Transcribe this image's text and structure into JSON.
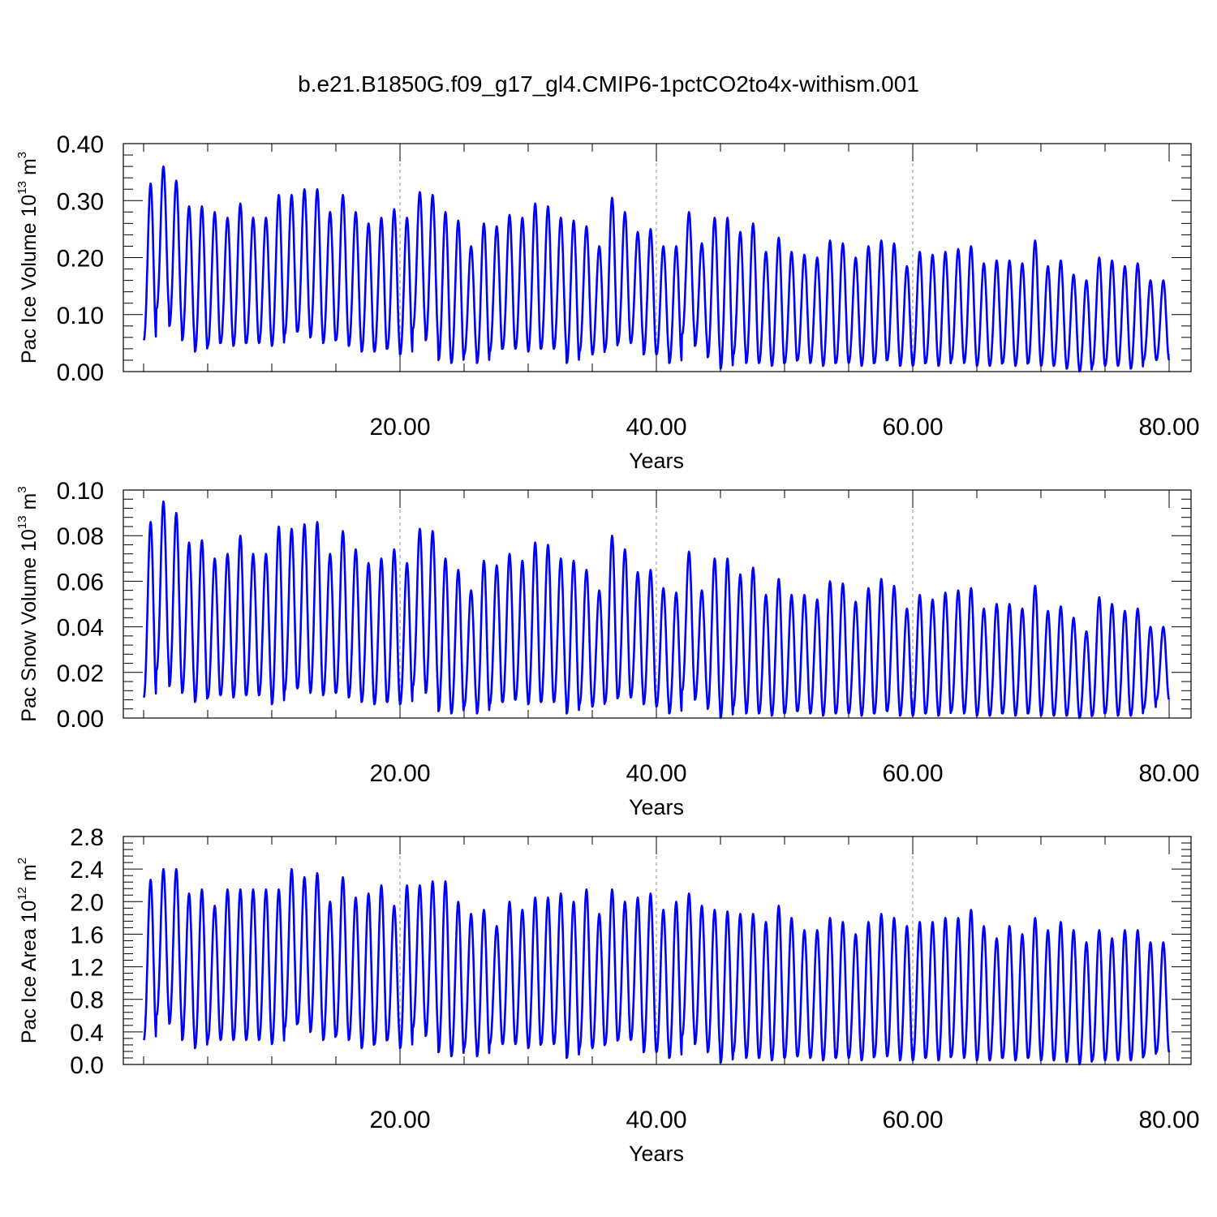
{
  "figure": {
    "title": "b.e21.B1850G.f09_g17_gl4.CMIP6-1pctCO2to4x-withism.001"
  },
  "style": {
    "line_color": "#0000ff",
    "grid_style": "dashed",
    "grid_color": "#888888"
  },
  "chart_data": [
    {
      "type": "line",
      "title": "",
      "xlabel": "Years",
      "ylabel": "Pac Ice Volume",
      "ylabel_unit": {
        "base": "10",
        "exp": "13",
        "unit": "m",
        "unit_exp": "3"
      },
      "xlim": [
        0,
        80
      ],
      "ylim": [
        0.0,
        0.4
      ],
      "xticks": [
        "20.00",
        "40.00",
        "60.00",
        "80.00"
      ],
      "yticks": [
        "0.00",
        "0.10",
        "0.20",
        "0.30",
        "0.40"
      ],
      "grid": "vertical dashed at major x ticks",
      "series": [
        {
          "period": 1,
          "x_start": 0.0,
          "x_end": 80.0,
          "annual_max": [
            0.33,
            0.36,
            0.335,
            0.29,
            0.29,
            0.28,
            0.27,
            0.295,
            0.27,
            0.27,
            0.31,
            0.31,
            0.32,
            0.32,
            0.28,
            0.31,
            0.28,
            0.26,
            0.27,
            0.285,
            0.27,
            0.315,
            0.31,
            0.28,
            0.265,
            0.22,
            0.26,
            0.255,
            0.275,
            0.27,
            0.295,
            0.29,
            0.27,
            0.265,
            0.255,
            0.22,
            0.305,
            0.28,
            0.245,
            0.25,
            0.22,
            0.22,
            0.28,
            0.225,
            0.27,
            0.27,
            0.245,
            0.26,
            0.21,
            0.235,
            0.21,
            0.205,
            0.2,
            0.23,
            0.225,
            0.2,
            0.22,
            0.23,
            0.225,
            0.185,
            0.21,
            0.205,
            0.21,
            0.215,
            0.22,
            0.19,
            0.195,
            0.195,
            0.19,
            0.23,
            0.185,
            0.195,
            0.17,
            0.16,
            0.2,
            0.195,
            0.185,
            0.19,
            0.16,
            0.16
          ],
          "annual_min": [
            0.055,
            0.11,
            0.08,
            0.055,
            0.035,
            0.045,
            0.05,
            0.045,
            0.05,
            0.05,
            0.045,
            0.065,
            0.07,
            0.06,
            0.05,
            0.055,
            0.045,
            0.035,
            0.035,
            0.04,
            0.03,
            0.075,
            0.055,
            0.02,
            0.015,
            0.03,
            0.015,
            0.035,
            0.04,
            0.04,
            0.035,
            0.04,
            0.04,
            0.015,
            0.035,
            0.03,
            0.04,
            0.05,
            0.05,
            0.03,
            0.03,
            0.015,
            0.065,
            0.045,
            0.025,
            0.005,
            0.03,
            0.015,
            0.015,
            0.01,
            0.015,
            0.02,
            0.015,
            0.01,
            0.015,
            0.015,
            0.01,
            0.015,
            0.02,
            0.01,
            0.01,
            0.015,
            0.01,
            0.02,
            0.015,
            0.01,
            0.01,
            0.015,
            0.01,
            0.015,
            0.01,
            0.01,
            0.005,
            0.0,
            0.01,
            0.01,
            0.01,
            0.005,
            0.02,
            0.02
          ]
        }
      ]
    },
    {
      "type": "line",
      "title": "",
      "xlabel": "Years",
      "ylabel": "Pac Snow Volume",
      "ylabel_unit": {
        "base": "10",
        "exp": "13",
        "unit": "m",
        "unit_exp": "3"
      },
      "xlim": [
        0,
        80
      ],
      "ylim": [
        0.0,
        0.1
      ],
      "xticks": [
        "20.00",
        "40.00",
        "60.00",
        "80.00"
      ],
      "yticks": [
        "0.00",
        "0.02",
        "0.04",
        "0.06",
        "0.08",
        "0.10"
      ],
      "grid": "vertical dashed at major x ticks",
      "series": [
        {
          "period": 1,
          "x_start": 0.0,
          "x_end": 80.0,
          "annual_max": [
            0.086,
            0.095,
            0.09,
            0.077,
            0.078,
            0.07,
            0.072,
            0.08,
            0.072,
            0.072,
            0.084,
            0.083,
            0.085,
            0.086,
            0.072,
            0.082,
            0.074,
            0.068,
            0.07,
            0.074,
            0.068,
            0.083,
            0.082,
            0.07,
            0.065,
            0.056,
            0.069,
            0.067,
            0.072,
            0.069,
            0.077,
            0.076,
            0.07,
            0.069,
            0.065,
            0.056,
            0.08,
            0.074,
            0.064,
            0.065,
            0.057,
            0.055,
            0.073,
            0.056,
            0.07,
            0.07,
            0.063,
            0.066,
            0.054,
            0.061,
            0.054,
            0.054,
            0.052,
            0.06,
            0.059,
            0.051,
            0.057,
            0.061,
            0.058,
            0.048,
            0.054,
            0.052,
            0.055,
            0.056,
            0.057,
            0.048,
            0.05,
            0.05,
            0.048,
            0.058,
            0.047,
            0.049,
            0.044,
            0.038,
            0.053,
            0.05,
            0.047,
            0.048,
            0.04,
            0.04
          ],
          "annual_min": [
            0.009,
            0.021,
            0.014,
            0.011,
            0.007,
            0.009,
            0.01,
            0.009,
            0.01,
            0.01,
            0.006,
            0.012,
            0.013,
            0.011,
            0.01,
            0.011,
            0.009,
            0.007,
            0.006,
            0.007,
            0.006,
            0.014,
            0.011,
            0.003,
            0.002,
            0.005,
            0.002,
            0.006,
            0.007,
            0.008,
            0.006,
            0.007,
            0.007,
            0.002,
            0.006,
            0.005,
            0.007,
            0.009,
            0.009,
            0.006,
            0.005,
            0.002,
            0.012,
            0.008,
            0.004,
            0.0,
            0.005,
            0.002,
            0.002,
            0.001,
            0.002,
            0.003,
            0.002,
            0.001,
            0.002,
            0.002,
            0.001,
            0.002,
            0.003,
            0.001,
            0.001,
            0.002,
            0.001,
            0.003,
            0.002,
            0.001,
            0.001,
            0.002,
            0.001,
            0.002,
            0.001,
            0.001,
            0.001,
            0.0,
            0.001,
            0.002,
            0.001,
            0.001,
            0.004,
            0.008
          ]
        }
      ]
    },
    {
      "type": "line",
      "title": "",
      "xlabel": "Years",
      "ylabel": "Pac Ice Area",
      "ylabel_unit": {
        "base": "10",
        "exp": "12",
        "unit": "m",
        "unit_exp": "2"
      },
      "xlim": [
        0,
        80
      ],
      "ylim": [
        0.0,
        2.8
      ],
      "xticks": [
        "20.00",
        "40.00",
        "60.00",
        "80.00"
      ],
      "yticks": [
        "0.0",
        "0.4",
        "0.8",
        "1.2",
        "1.6",
        "2.0",
        "2.4",
        "2.8"
      ],
      "grid": "vertical dashed at major x ticks",
      "series": [
        {
          "period": 1,
          "x_start": 0.0,
          "x_end": 80.0,
          "annual_max": [
            2.27,
            2.4,
            2.4,
            2.1,
            2.15,
            1.95,
            2.15,
            2.15,
            2.15,
            2.15,
            2.15,
            2.4,
            2.3,
            2.35,
            2.0,
            2.3,
            2.05,
            2.1,
            2.2,
            1.95,
            2.2,
            2.2,
            2.25,
            2.25,
            2.0,
            1.85,
            1.9,
            1.7,
            2.0,
            1.9,
            2.05,
            2.05,
            2.1,
            2.0,
            2.15,
            1.85,
            2.15,
            2.0,
            2.05,
            2.1,
            1.9,
            2.0,
            2.1,
            1.95,
            1.9,
            1.88,
            1.85,
            1.85,
            1.75,
            1.95,
            1.8,
            1.65,
            1.65,
            1.8,
            1.75,
            1.6,
            1.75,
            1.85,
            1.8,
            1.7,
            1.75,
            1.75,
            1.8,
            1.8,
            1.9,
            1.7,
            1.55,
            1.7,
            1.6,
            1.8,
            1.65,
            1.75,
            1.65,
            1.5,
            1.65,
            1.55,
            1.65,
            1.65,
            1.5,
            1.5
          ],
          "annual_min": [
            0.3,
            0.6,
            0.5,
            0.3,
            0.2,
            0.3,
            0.3,
            0.3,
            0.3,
            0.3,
            0.25,
            0.45,
            0.5,
            0.4,
            0.3,
            0.35,
            0.3,
            0.2,
            0.25,
            0.3,
            0.2,
            0.45,
            0.35,
            0.15,
            0.1,
            0.2,
            0.1,
            0.25,
            0.25,
            0.25,
            0.2,
            0.25,
            0.25,
            0.08,
            0.2,
            0.2,
            0.25,
            0.3,
            0.3,
            0.15,
            0.15,
            0.08,
            0.35,
            0.25,
            0.15,
            0.02,
            0.15,
            0.08,
            0.08,
            0.05,
            0.08,
            0.1,
            0.08,
            0.05,
            0.08,
            0.08,
            0.05,
            0.1,
            0.1,
            0.05,
            0.05,
            0.08,
            0.05,
            0.1,
            0.08,
            0.05,
            0.05,
            0.08,
            0.05,
            0.08,
            0.05,
            0.05,
            0.03,
            0.0,
            0.05,
            0.05,
            0.05,
            0.05,
            0.1,
            0.15
          ]
        }
      ]
    }
  ]
}
